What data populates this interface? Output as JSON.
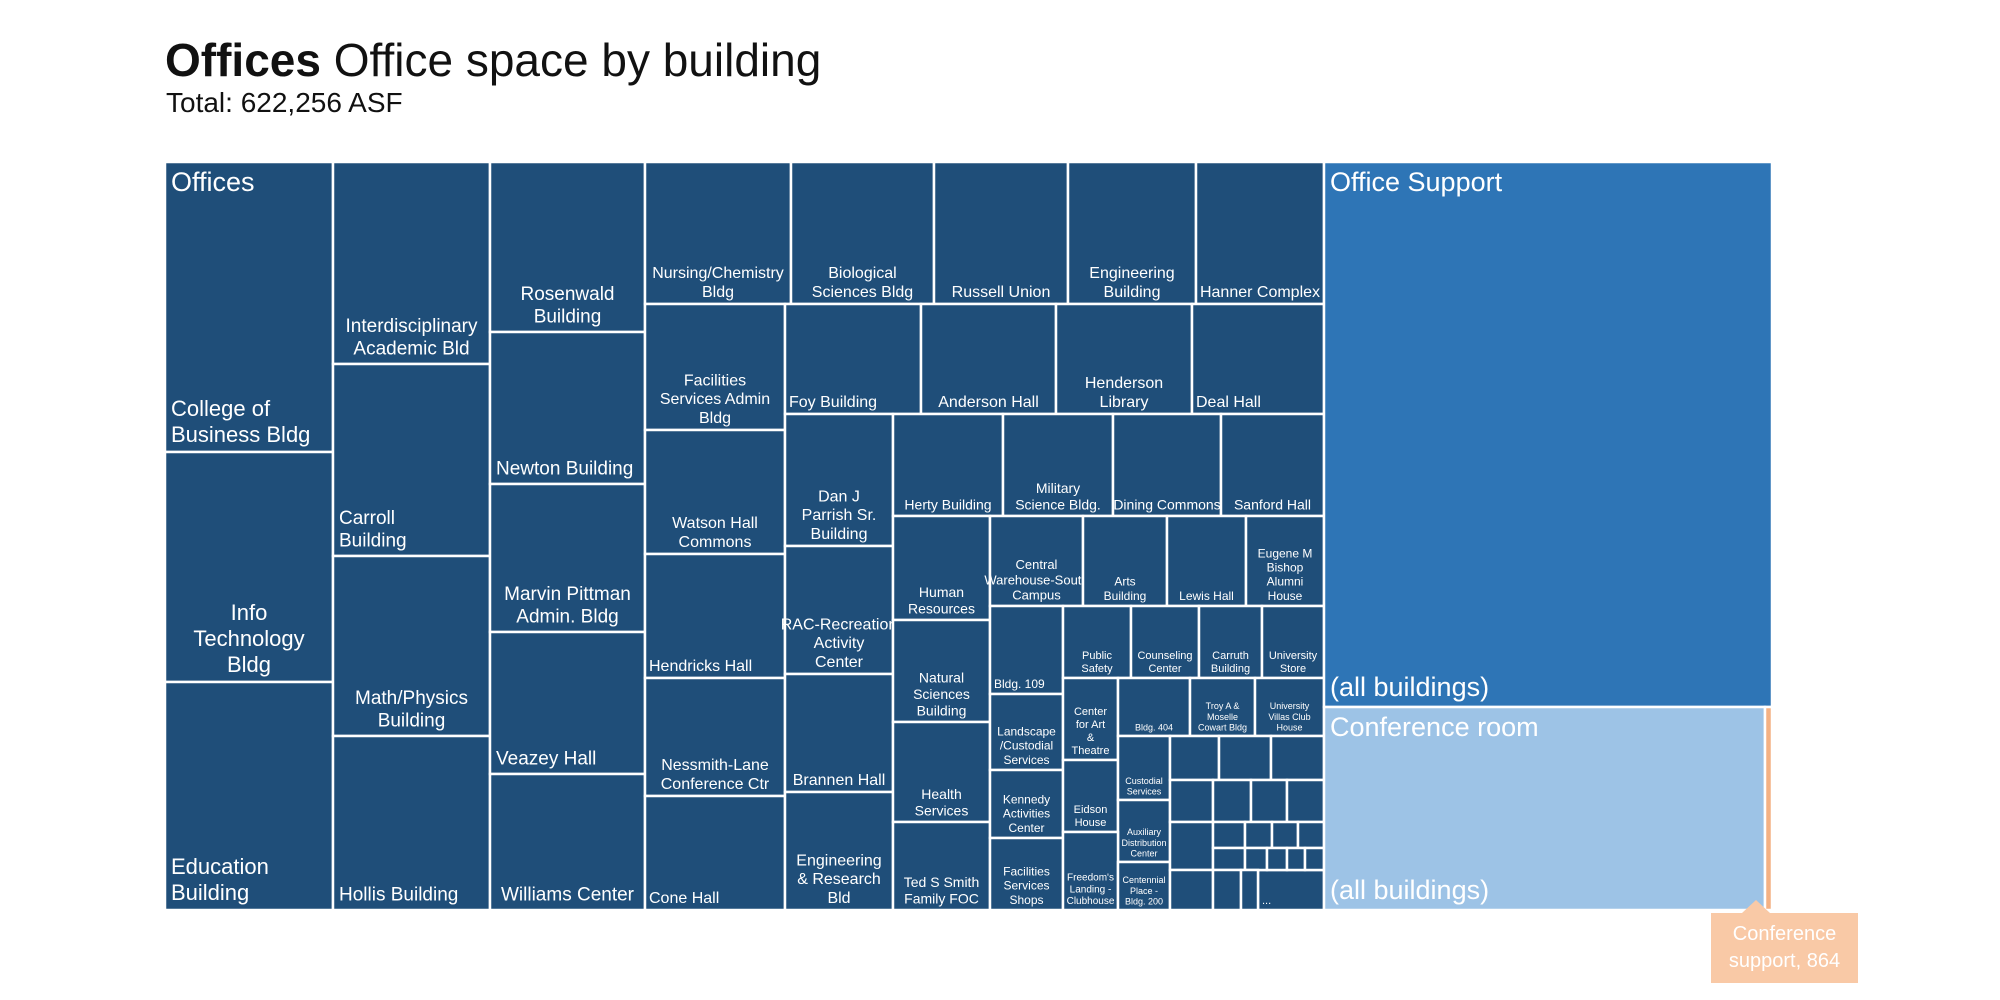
{
  "header": {
    "title_bold": "Offices",
    "title_rest": "Office space by building",
    "subtitle": "Total: 622,256 ASF"
  },
  "colors": {
    "offices": "#1f4e79",
    "office_support": "#2e75b6",
    "conference_room": "#9dc3e6",
    "conference_support": "#f4b183"
  },
  "callout": {
    "label": "Conference support, 864"
  },
  "chart_data": {
    "type": "treemap",
    "title": "Offices Office space by building",
    "subtitle": "Total: 622,256 ASF",
    "total_asf": 622256,
    "groups": [
      {
        "name": "Offices",
        "color": "#1f4e79",
        "children": [
          "College of Business Bldg",
          "Info Technology Bldg",
          "Education Building",
          "Interdisciplinary Academic Bld",
          "Carroll Building",
          "Math/Physics Building",
          "Hollis Building",
          "Rosenwald Building",
          "Newton Building",
          "Marvin Pittman Admin. Bldg",
          "Veazey Hall",
          "Williams Center",
          "Nursing/Chemistry Bldg",
          "Biological Sciences Bldg",
          "Russell Union",
          "Engineering Building",
          "Hanner Complex",
          "Facilities Services Admin Bldg",
          "Watson Hall Commons",
          "Hendricks Hall",
          "Nessmith-Lane Conference Ctr",
          "Cone Hall",
          "Foy Building",
          "Anderson Hall",
          "Henderson Library",
          "Deal Hall",
          "Dan J Parrish Sr. Building",
          "RAC-Recreation Activity Center",
          "Brannen Hall",
          "Engineering & Research Bld",
          "Herty Building",
          "Military Science Bldg.",
          "Dining Commons",
          "Sanford Hall",
          "Human Resources",
          "Natural Sciences Building",
          "Health Services",
          "Ted S Smith Family FOC",
          "Central Warehouse-South Campus",
          "Arts Building",
          "Lewis Hall",
          "Eugene M Bishop Alumni House",
          "Bldg. 109",
          "Public Safety",
          "Counseling Center",
          "Carruth Building",
          "University Store",
          "Landscape /Custodial Services",
          "Center for Art & Theatre",
          "Bldg. 404",
          "Troy A & Moselle Cowart Bldg",
          "University Villas Club House",
          "Kennedy Activities Center",
          "Eidson House",
          "Custodial Services",
          "Auxiliary Distribution Center",
          "Facilities Services Shops",
          "Freedom's Landing - Clubhouse",
          "Centennial Place - Bldg. 200",
          "..."
        ]
      },
      {
        "name": "Office Support",
        "color": "#2e75b6",
        "children": [
          "(all buildings)"
        ]
      },
      {
        "name": "Conference room",
        "color": "#9dc3e6",
        "children": [
          "(all buildings)"
        ]
      },
      {
        "name": "Conference support",
        "color": "#f4b183",
        "value": 864
      }
    ]
  },
  "treemap": {
    "group_labels": {
      "offices": "Offices",
      "office_support": "Office Support",
      "conference_room": "Conference room"
    },
    "all_buildings": "(all buildings)",
    "leaves": [
      "College of Business Bldg",
      "Info Technology Bldg",
      "Education Building",
      "Interdisciplinary Academic Bld",
      "Carroll Building",
      "Math/Physics Building",
      "Hollis Building",
      "Rosenwald Building",
      "Newton Building",
      "Marvin Pittman Admin. Bldg",
      "Veazey Hall",
      "Williams Center",
      "Nursing/Chemistry Bldg",
      "Biological Sciences Bldg",
      "Russell Union",
      "Engineering Building",
      "Hanner Complex",
      "Facilities Services Admin Bldg",
      "Watson Hall Commons",
      "Hendricks Hall",
      "Nessmith-Lane Conference Ctr",
      "Cone Hall",
      "Foy Building",
      "Anderson Hall",
      "Henderson Library",
      "Deal Hall",
      "Dan J Parrish Sr. Building",
      "RAC-Recreation Activity Center",
      "Brannen Hall",
      "Engineering & Research Bld",
      "Herty Building",
      "Military Science Bldg.",
      "Dining Commons",
      "Sanford Hall",
      "Human Resources",
      "Natural Sciences Building",
      "Health Services",
      "Ted S Smith Family FOC",
      "Central Warehouse-South Campus",
      "Arts Building",
      "Lewis Hall",
      "Eugene M Bishop Alumni House",
      "Bldg. 109",
      "Public Safety",
      "Counseling Center",
      "Carruth Building",
      "University Store",
      "Landscape /Custodial Services",
      "Center for Art & Theatre",
      "Bldg. 404",
      "Troy A & Moselle Cowart Bldg",
      "University Villas Club House",
      "Kennedy Activities Center",
      "Eidson House",
      "Custodial Services",
      "Auxiliary Distribution Center",
      "Facilities Services Shops",
      "Freedom's Landing - Clubhouse",
      "Centennial Place - Bldg. 200",
      "..."
    ]
  }
}
